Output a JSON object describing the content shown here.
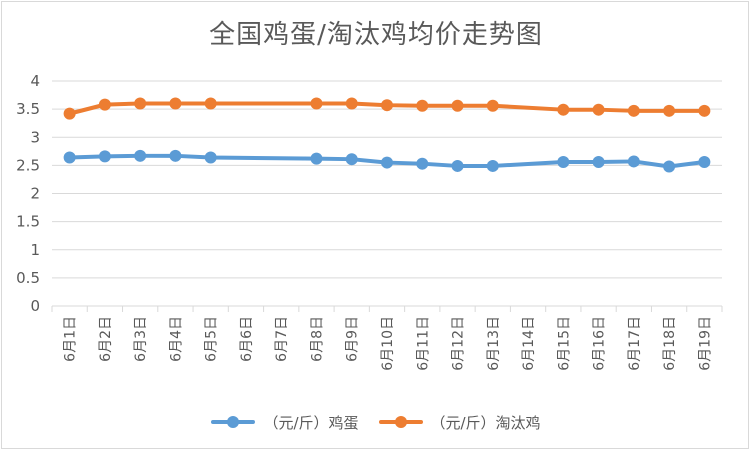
{
  "chart_data": {
    "type": "line",
    "title": "全国鸡蛋/淘汰鸡均价走势图",
    "categories": [
      "6月1日",
      "6月2日",
      "6月3日",
      "6月4日",
      "6月5日",
      "6月6日",
      "6月7日",
      "6月8日",
      "6月9日",
      "6月10日",
      "6月11日",
      "6月12日",
      "6月13日",
      "6月14日",
      "6月15日",
      "6月16日",
      "6月17日",
      "6月18日",
      "6月19日"
    ],
    "ylim": [
      0,
      4
    ],
    "yticks": [
      "0",
      "0.5",
      "1",
      "1.5",
      "2",
      "2.5",
      "3",
      "3.5",
      "4"
    ],
    "grid": true,
    "legend_position": "bottom",
    "series": [
      {
        "name": "（元/斤）鸡蛋",
        "color": "#5b9bd5",
        "values": [
          2.64,
          2.66,
          2.67,
          2.67,
          2.64,
          null,
          null,
          2.62,
          2.61,
          2.55,
          2.53,
          2.49,
          2.49,
          null,
          2.56,
          2.56,
          2.57,
          2.48,
          2.56
        ]
      },
      {
        "name": "（元/斤）淘汰鸡",
        "color": "#ed7d31",
        "values": [
          3.42,
          3.58,
          3.6,
          3.6,
          3.6,
          null,
          null,
          3.6,
          3.6,
          3.57,
          3.56,
          3.56,
          3.56,
          null,
          3.49,
          3.49,
          3.47,
          3.47,
          3.47
        ]
      }
    ]
  }
}
